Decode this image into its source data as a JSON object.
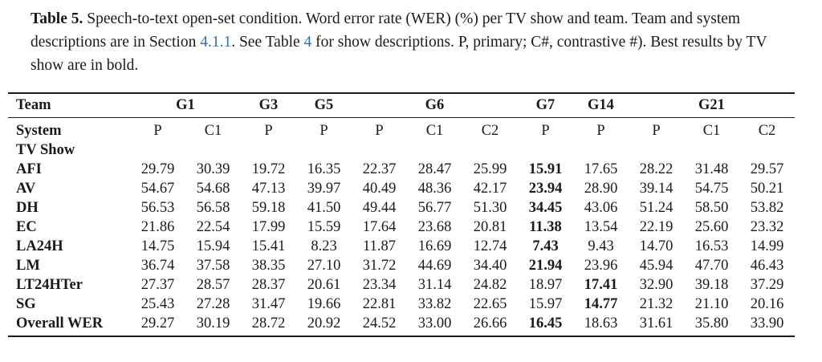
{
  "caption": {
    "label": "Table 5.",
    "text_1": " Speech-to-text open-set condition. Word error rate (WER) (%) per TV show and team. Team and system descriptions are in Section ",
    "ref_section": "4.1.1",
    "text_2": ".  See Table ",
    "ref_table": "4",
    "text_3": " for show descriptions.  P, primary; C#, contrastive #). Best results by TV show are in bold."
  },
  "table": {
    "team_header": "Team",
    "system_header": "System",
    "tvshow_header": "TV Show",
    "groups": [
      {
        "name": "G1",
        "span": 2
      },
      {
        "name": "G3",
        "span": 1
      },
      {
        "name": "G5",
        "span": 1
      },
      {
        "name": "G6",
        "span": 3
      },
      {
        "name": "G7",
        "span": 1
      },
      {
        "name": "G14",
        "span": 1
      },
      {
        "name": "G21",
        "span": 3
      }
    ],
    "systems": [
      "P",
      "C1",
      "P",
      "P",
      "P",
      "C1",
      "C2",
      "P",
      "P",
      "P",
      "C1",
      "C2"
    ],
    "rows": [
      {
        "show": "AFI",
        "values": [
          "29.79",
          "30.39",
          "19.72",
          "16.35",
          "22.37",
          "28.47",
          "25.99",
          "15.91",
          "17.65",
          "28.22",
          "31.48",
          "29.57"
        ],
        "best": [
          7
        ]
      },
      {
        "show": "AV",
        "values": [
          "54.67",
          "54.68",
          "47.13",
          "39.97",
          "40.49",
          "48.36",
          "42.17",
          "23.94",
          "28.90",
          "39.14",
          "54.75",
          "50.21"
        ],
        "best": [
          7
        ]
      },
      {
        "show": "DH",
        "values": [
          "56.53",
          "56.58",
          "59.18",
          "41.50",
          "49.44",
          "56.77",
          "51.30",
          "34.45",
          "43.06",
          "51.24",
          "58.50",
          "53.82"
        ],
        "best": [
          7
        ]
      },
      {
        "show": "EC",
        "values": [
          "21.86",
          "22.54",
          "17.99",
          "15.59",
          "17.64",
          "23.68",
          "20.81",
          "11.38",
          "13.54",
          "22.19",
          "25.60",
          "23.32"
        ],
        "best": [
          7
        ]
      },
      {
        "show": "LA24H",
        "values": [
          "14.75",
          "15.94",
          "15.41",
          "8.23",
          "11.87",
          "16.69",
          "12.74",
          "7.43",
          "9.43",
          "14.70",
          "16.53",
          "14.99"
        ],
        "best": [
          7
        ]
      },
      {
        "show": "LM",
        "values": [
          "36.74",
          "37.58",
          "38.35",
          "27.10",
          "31.72",
          "44.69",
          "34.40",
          "21.94",
          "23.96",
          "45.94",
          "47.70",
          "46.43"
        ],
        "best": [
          7
        ]
      },
      {
        "show": "LT24HTer",
        "values": [
          "27.37",
          "28.57",
          "28.37",
          "20.61",
          "23.34",
          "31.14",
          "24.82",
          "18.97",
          "17.41",
          "32.90",
          "39.18",
          "37.29"
        ],
        "best": [
          8
        ]
      },
      {
        "show": "SG",
        "values": [
          "25.43",
          "27.28",
          "31.47",
          "19.66",
          "22.81",
          "33.82",
          "22.65",
          "15.97",
          "14.77",
          "21.32",
          "21.10",
          "20.16"
        ],
        "best": [
          8
        ]
      },
      {
        "show": "Overall WER",
        "values": [
          "29.27",
          "30.19",
          "28.72",
          "20.92",
          "24.52",
          "33.00",
          "26.66",
          "16.45",
          "18.63",
          "31.61",
          "35.80",
          "33.90"
        ],
        "best": [
          7
        ]
      }
    ]
  }
}
